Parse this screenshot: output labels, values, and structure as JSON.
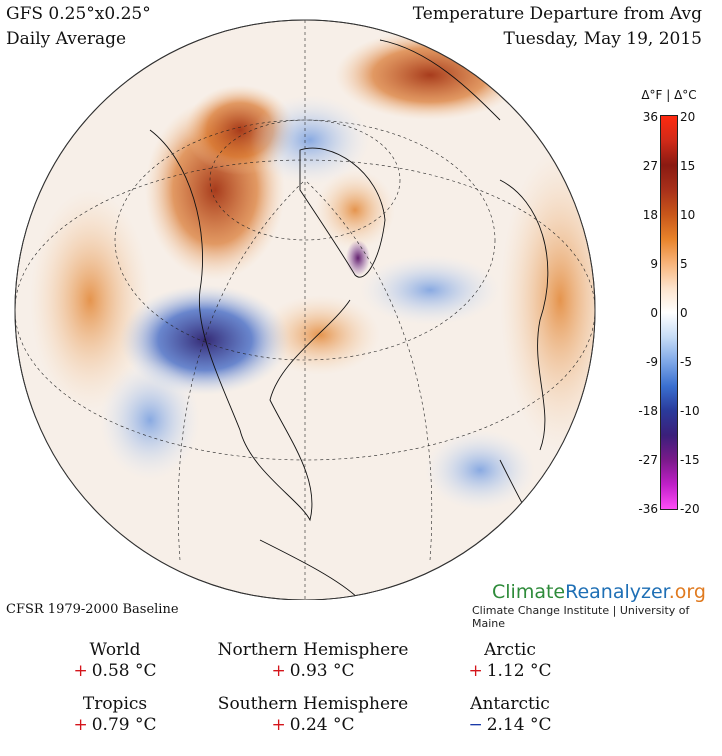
{
  "header": {
    "model": "GFS 0.25°x0.25°",
    "period": "Daily Average",
    "title": "Temperature Departure from Avg",
    "date": "Tuesday, May 19, 2015"
  },
  "legend": {
    "header": "Δ°F  |  Δ°C",
    "fahrenheit_ticks": [
      "36",
      "27",
      "18",
      "9",
      "0",
      "-9",
      "-18",
      "-27",
      "-36"
    ],
    "celsius_ticks": [
      "20",
      "15",
      "10",
      "5",
      "0",
      "-5",
      "-10",
      "-15",
      "-20"
    ],
    "colors": [
      "#ff4df7",
      "#c020c8",
      "#7a1a8a",
      "#3b1f7a",
      "#2a3a9a",
      "#3a6fd0",
      "#7fa8e8",
      "#c6dcf6",
      "#ffffff",
      "#fde3cc",
      "#f8b47a",
      "#e8822a",
      "#c8561a",
      "#a8301a",
      "#8a1a12",
      "#d02a18",
      "#ff2a10"
    ]
  },
  "footer": {
    "baseline": "CFSR 1979-2000 Baseline",
    "brand_part1": "Climate",
    "brand_part2": "Reanalyzer",
    "brand_part3": ".org",
    "institute": "Climate Change Institute | University of Maine"
  },
  "stats": [
    {
      "label": "World",
      "sign": "+",
      "value": "0.58 °C"
    },
    {
      "label": "Northern Hemisphere",
      "sign": "+",
      "value": "0.93 °C"
    },
    {
      "label": "Arctic",
      "sign": "+",
      "value": "1.12 °C"
    },
    {
      "label": "Tropics",
      "sign": "+",
      "value": "0.79 °C"
    },
    {
      "label": "Southern Hemisphere",
      "sign": "+",
      "value": "0.24 °C"
    },
    {
      "label": "Antarctic",
      "sign": "−",
      "value": "2.14 °C"
    }
  ]
}
